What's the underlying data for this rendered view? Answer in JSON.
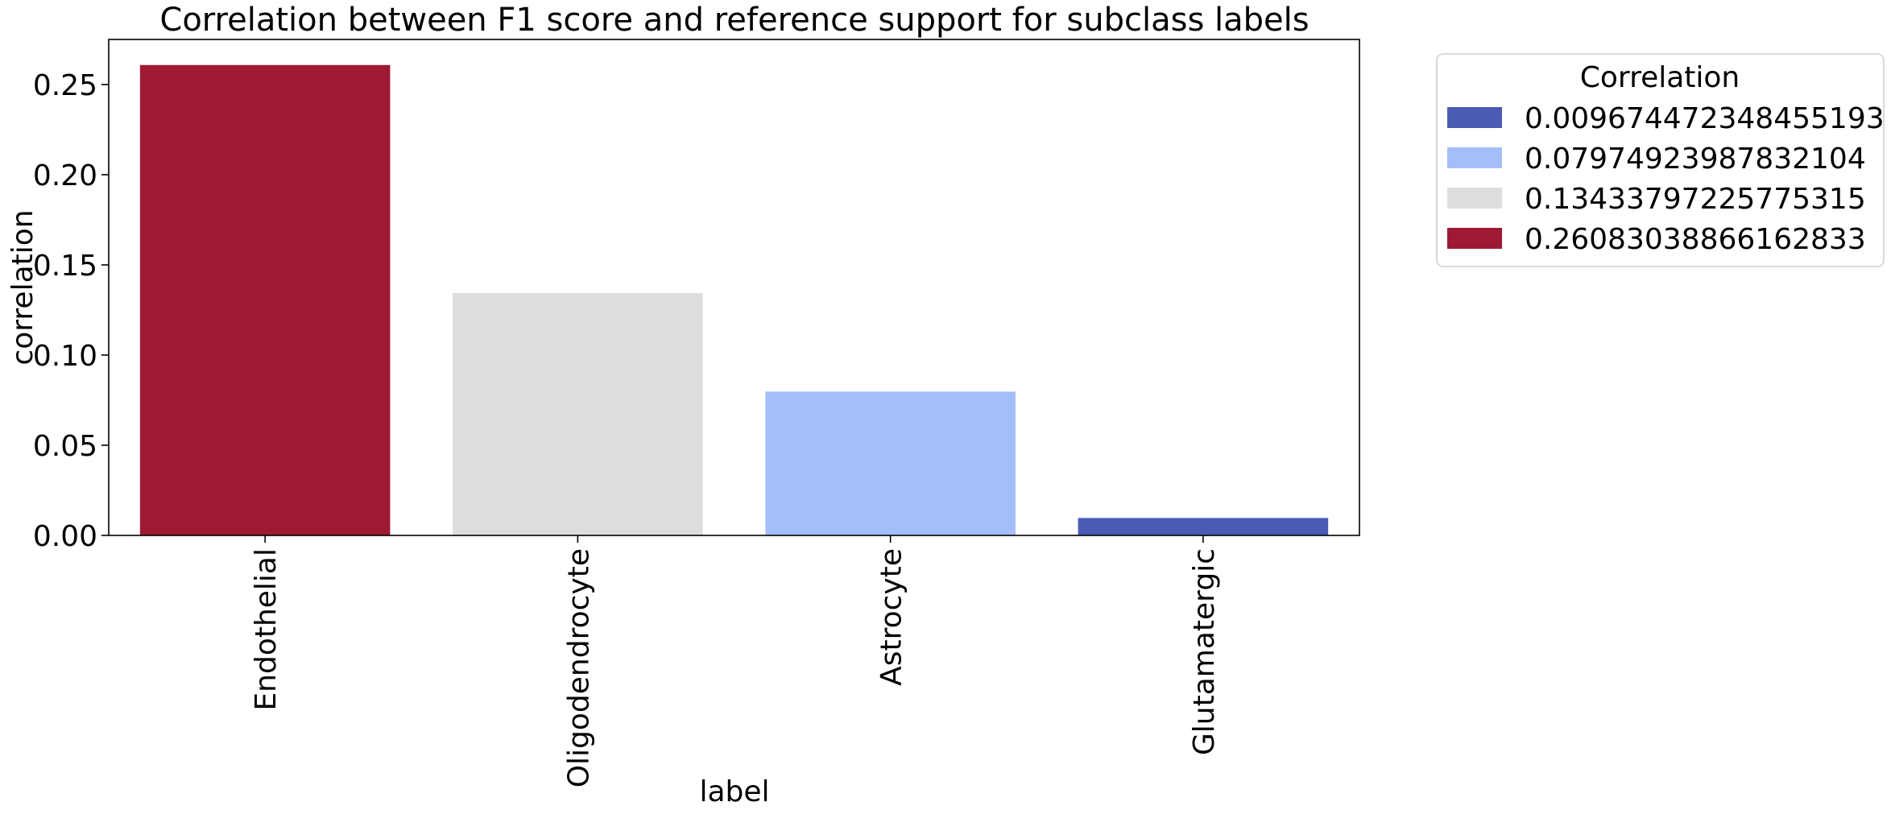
{
  "chart_data": {
    "type": "bar",
    "title": "Correlation between F1 score and reference support for subclass labels",
    "xlabel": "label",
    "ylabel": "correlation",
    "categories": [
      "Endothelial",
      "Oligodendrocyte",
      "Astrocyte",
      "Glutamatergic"
    ],
    "values": [
      0.26083038866162833,
      0.13433797225775315,
      0.07974923987832104,
      0.009674472348455193
    ],
    "colors": [
      "#9e1a33",
      "#dcdddd",
      "#a4befa",
      "#4a5bb6"
    ],
    "ylim": [
      0,
      0.275
    ],
    "yticks": [
      0.0,
      0.05,
      0.1,
      0.15,
      0.2,
      0.25
    ],
    "ytick_labels": [
      "0.00",
      "0.05",
      "0.10",
      "0.15",
      "0.20",
      "0.25"
    ],
    "grid": false,
    "legend": {
      "title": "Correlation",
      "placement": "outside upper right",
      "entries": [
        {
          "label": "0.009674472348455193",
          "color": "#4a5bb6"
        },
        {
          "label": "0.07974923987832104",
          "color": "#a4befa"
        },
        {
          "label": "0.13433797225775315",
          "color": "#dcdddd"
        },
        {
          "label": "0.26083038866162833",
          "color": "#9e1a33"
        }
      ]
    }
  }
}
